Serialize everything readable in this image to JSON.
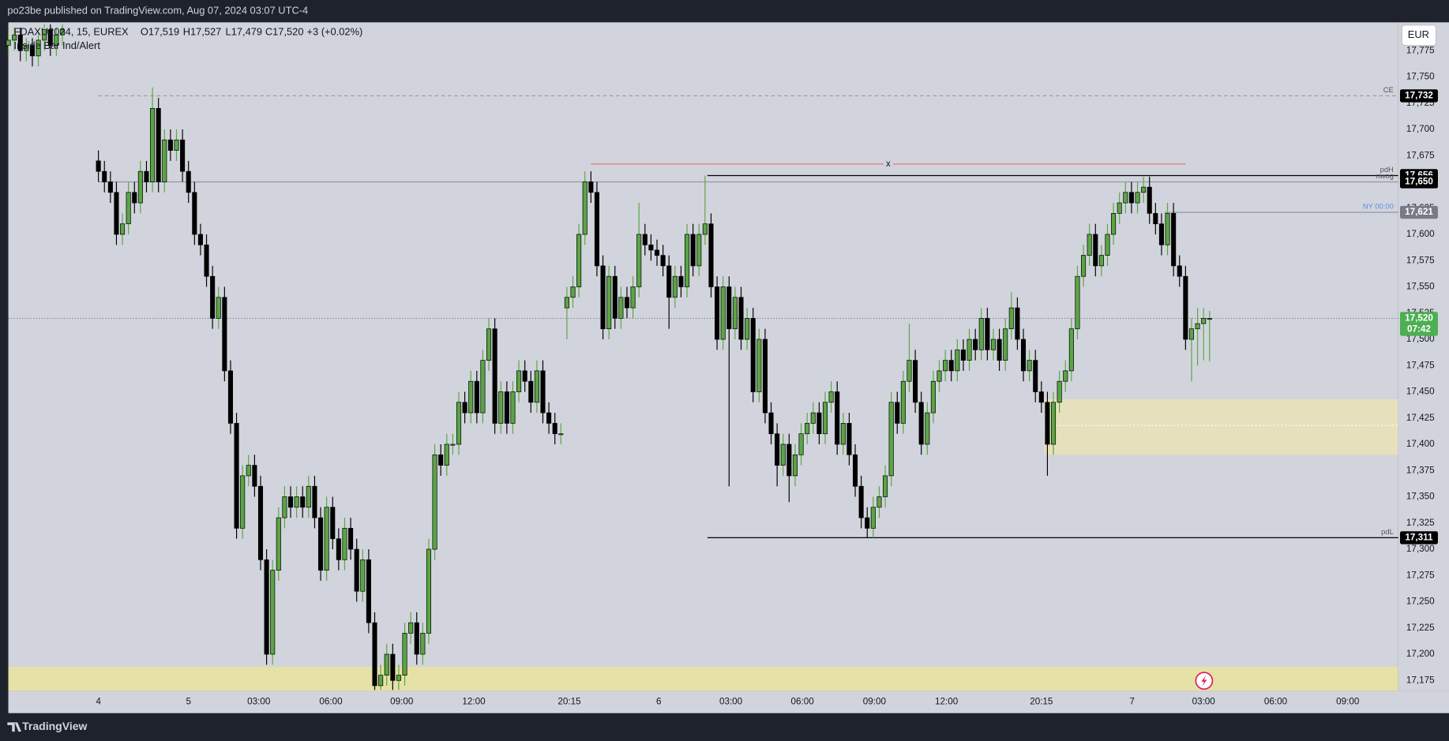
{
  "header": "po23be published on TradingView.com, Aug 07, 2024 03:07 UTC-4",
  "footer": "TradingView",
  "currency": "EUR",
  "chart_data": {
    "type": "candlestick",
    "legend": {
      "symbol": "FDAXU2024, 15, EUREX",
      "ohlc": [
        "O17,519",
        "H17,527",
        "L17,479",
        "C17,520"
      ],
      "change": "+3 (+0.02%)",
      "indicator": "Inside Bar Ind/Alert"
    },
    "up_color": "#5aa544",
    "down_color": "#000000",
    "grid": false,
    "xlim": [
      0,
      231.4
    ],
    "ylim": [
      17165,
      17802
    ],
    "xticks": [
      {
        "value": 15,
        "label": "4"
      },
      {
        "value": 30,
        "label": "5"
      },
      {
        "value": 41.7,
        "label": "03:00"
      },
      {
        "value": 53.7,
        "label": "06:00"
      },
      {
        "value": 65.5,
        "label": "09:00"
      },
      {
        "value": 77.5,
        "label": "12:00"
      },
      {
        "value": 93.4,
        "label": "20:15"
      },
      {
        "value": 108.3,
        "label": "6"
      },
      {
        "value": 120.3,
        "label": "03:00"
      },
      {
        "value": 132.2,
        "label": "06:00"
      },
      {
        "value": 144.2,
        "label": "09:00"
      },
      {
        "value": 156.2,
        "label": "12:00"
      },
      {
        "value": 172,
        "label": "20:15"
      },
      {
        "value": 187.1,
        "label": "7"
      },
      {
        "value": 199,
        "label": "03:00"
      },
      {
        "value": 211,
        "label": "06:00"
      },
      {
        "value": 223,
        "label": "09:00"
      }
    ],
    "yticks": [
      {
        "value": 17175,
        "label": "17,175"
      },
      {
        "value": 17200,
        "label": "17,200"
      },
      {
        "value": 17225,
        "label": "17,225"
      },
      {
        "value": 17250,
        "label": "17,250"
      },
      {
        "value": 17275,
        "label": "17,275"
      },
      {
        "value": 17300,
        "label": "17,300"
      },
      {
        "value": 17325,
        "label": "17,325"
      },
      {
        "value": 17350,
        "label": "17,350"
      },
      {
        "value": 17375,
        "label": "17,375"
      },
      {
        "value": 17400,
        "label": "17,400"
      },
      {
        "value": 17425,
        "label": "17,425"
      },
      {
        "value": 17450,
        "label": "17,450"
      },
      {
        "value": 17475,
        "label": "17,475"
      },
      {
        "value": 17500,
        "label": "17,500"
      },
      {
        "value": 17525,
        "label": "17,525"
      },
      {
        "value": 17550,
        "label": "17,550"
      },
      {
        "value": 17575,
        "label": "17,575"
      },
      {
        "value": 17600,
        "label": "17,600"
      },
      {
        "value": 17625,
        "label": "17,625"
      },
      {
        "value": 17650,
        "label": "17,650"
      },
      {
        "value": 17675,
        "label": "17,675"
      },
      {
        "value": 17700,
        "label": "17,700"
      },
      {
        "value": 17725,
        "label": "17,725"
      },
      {
        "value": 17750,
        "label": "17,750"
      },
      {
        "value": 17775,
        "label": "17,775"
      }
    ],
    "x": [
      0,
      1,
      2,
      3,
      4,
      5,
      6,
      7,
      8,
      9,
      15,
      16,
      17,
      18,
      19,
      20,
      21,
      22,
      23,
      24,
      25,
      26,
      27,
      28,
      29,
      30,
      31,
      32,
      33,
      34,
      35,
      36,
      37,
      38,
      39,
      40,
      41,
      42,
      43,
      44,
      45,
      46,
      47,
      48,
      49,
      50,
      51,
      52,
      53,
      54,
      55,
      56,
      57,
      58,
      59,
      60,
      61,
      62,
      63,
      64,
      65,
      66,
      67,
      68,
      69,
      70,
      71,
      72,
      73,
      74,
      75,
      76,
      77,
      78,
      79,
      80,
      81,
      82,
      83,
      84,
      85,
      86,
      87,
      88,
      89,
      90,
      91,
      92,
      93,
      94,
      95,
      96,
      97,
      98,
      99,
      100,
      101,
      102,
      103,
      104,
      105,
      106,
      107,
      108,
      109,
      110,
      111,
      112,
      113,
      114,
      115,
      116,
      117,
      118,
      119,
      120,
      121,
      122,
      123,
      124,
      125,
      126,
      127,
      128,
      129,
      130,
      131,
      132,
      133,
      134,
      135,
      136,
      137,
      138,
      139,
      140,
      141,
      142,
      143,
      144,
      145,
      146,
      147,
      148,
      149,
      150,
      151,
      152,
      153,
      154,
      155,
      156,
      157,
      158,
      159,
      160,
      161,
      162,
      163,
      164,
      165,
      166,
      167,
      168,
      169,
      170,
      171,
      172,
      173,
      174,
      175,
      176,
      177,
      178,
      179,
      180,
      181,
      182,
      183,
      184,
      185,
      186,
      187,
      188,
      189,
      190,
      191,
      192,
      193,
      194,
      195,
      196,
      197,
      198,
      199,
      200
    ],
    "open": [
      17780,
      17785,
      17790,
      17775,
      17780,
      17770,
      17785,
      17795,
      17780,
      17790,
      17670,
      17660,
      17650,
      17640,
      17600,
      17610,
      17640,
      17630,
      17660,
      17650,
      17720,
      17650,
      17690,
      17680,
      17690,
      17660,
      17640,
      17600,
      17590,
      17560,
      17520,
      17540,
      17470,
      17420,
      17320,
      17370,
      17380,
      17360,
      17290,
      17200,
      17280,
      17330,
      17350,
      17340,
      17350,
      17340,
      17360,
      17330,
      17280,
      17340,
      17310,
      17290,
      17320,
      17300,
      17260,
      17290,
      17230,
      17170,
      17180,
      17200,
      17175,
      17180,
      17220,
      17230,
      17200,
      17220,
      17300,
      17390,
      17380,
      17400,
      17400,
      17440,
      17430,
      17460,
      17430,
      17480,
      17510,
      17420,
      17450,
      17420,
      17450,
      17470,
      17460,
      17440,
      17470,
      17430,
      17420,
      17410,
      17530,
      17540,
      17550,
      17600,
      17650,
      17640,
      17570,
      17510,
      17560,
      17520,
      17540,
      17530,
      17550,
      17600,
      17590,
      17585,
      17580,
      17570,
      17540,
      17560,
      17550,
      17600,
      17570,
      17600,
      17610,
      17550,
      17500,
      17550,
      17510,
      17540,
      17500,
      17520,
      17450,
      17500,
      17430,
      17410,
      17380,
      17400,
      17370,
      17390,
      17410,
      17420,
      17430,
      17410,
      17440,
      17450,
      17400,
      17420,
      17390,
      17360,
      17330,
      17320,
      17340,
      17350,
      17370,
      17440,
      17420,
      17460,
      17480,
      17440,
      17400,
      17430,
      17460,
      17470,
      17480,
      17470,
      17490,
      17480,
      17500,
      17490,
      17520,
      17490,
      17500,
      17480,
      17510,
      17530,
      17500,
      17470,
      17480,
      17450,
      17440,
      17400,
      17440,
      17460,
      17470,
      17510,
      17560,
      17580,
      17600,
      17570,
      17580,
      17600,
      17620,
      17630,
      17640,
      17630,
      17640,
      17645,
      17620,
      17610,
      17590,
      17620,
      17570,
      17560,
      17500,
      17510,
      17515,
      17519
    ],
    "high": [
      17792,
      17797,
      17797,
      17787,
      17787,
      17792,
      17800,
      17800,
      17797,
      17800,
      17680,
      17670,
      17660,
      17650,
      17620,
      17650,
      17650,
      17670,
      17670,
      17740,
      17730,
      17700,
      17700,
      17700,
      17700,
      17670,
      17650,
      17610,
      17600,
      17570,
      17550,
      17550,
      17480,
      17430,
      17380,
      17390,
      17390,
      17370,
      17300,
      17290,
      17340,
      17360,
      17360,
      17360,
      17360,
      17370,
      17370,
      17340,
      17350,
      17350,
      17320,
      17330,
      17330,
      17310,
      17300,
      17300,
      17240,
      17190,
      17210,
      17210,
      17190,
      17230,
      17240,
      17240,
      17230,
      17310,
      17400,
      17400,
      17410,
      17410,
      17450,
      17450,
      17470,
      17470,
      17490,
      17520,
      17520,
      17460,
      17460,
      17460,
      17480,
      17480,
      17470,
      17480,
      17480,
      17440,
      17430,
      17420,
      17550,
      17560,
      17610,
      17660,
      17660,
      17650,
      17580,
      17570,
      17570,
      17550,
      17550,
      17560,
      17630,
      17610,
      17600,
      17595,
      17590,
      17580,
      17570,
      17570,
      17610,
      17610,
      17610,
      17656,
      17620,
      17560,
      17560,
      17560,
      17550,
      17550,
      17530,
      17530,
      17510,
      17510,
      17440,
      17420,
      17410,
      17410,
      17400,
      17420,
      17430,
      17440,
      17440,
      17450,
      17460,
      17460,
      17430,
      17430,
      17400,
      17370,
      17340,
      17350,
      17360,
      17380,
      17450,
      17450,
      17470,
      17515,
      17490,
      17450,
      17440,
      17470,
      17480,
      17490,
      17490,
      17500,
      17500,
      17510,
      17510,
      17530,
      17530,
      17510,
      17510,
      17520,
      17545,
      17540,
      17510,
      17490,
      17490,
      17460,
      17450,
      17450,
      17470,
      17480,
      17520,
      17570,
      17590,
      17610,
      17610,
      17590,
      17610,
      17630,
      17640,
      17650,
      17650,
      17650,
      17655,
      17655,
      17630,
      17620,
      17630,
      17630,
      17580,
      17570,
      17520,
      17530,
      17530,
      17527
    ],
    "low": [
      17770,
      17775,
      17765,
      17765,
      17760,
      17760,
      17775,
      17770,
      17770,
      17780,
      17650,
      17640,
      17630,
      17590,
      17590,
      17600,
      17620,
      17620,
      17640,
      17640,
      17640,
      17640,
      17670,
      17670,
      17650,
      17630,
      17590,
      17580,
      17550,
      17510,
      17510,
      17460,
      17410,
      17310,
      17310,
      17360,
      17350,
      17280,
      17190,
      17190,
      17270,
      17320,
      17330,
      17330,
      17330,
      17330,
      17320,
      17270,
      17270,
      17300,
      17280,
      17280,
      17290,
      17250,
      17250,
      17220,
      17166,
      17166,
      17170,
      17166,
      17166,
      17170,
      17210,
      17190,
      17190,
      17210,
      17290,
      17370,
      17370,
      17390,
      17390,
      17420,
      17420,
      17420,
      17420,
      17470,
      17410,
      17410,
      17410,
      17410,
      17440,
      17450,
      17430,
      17430,
      17420,
      17410,
      17400,
      17400,
      17500,
      17530,
      17540,
      17590,
      17630,
      17560,
      17500,
      17500,
      17510,
      17510,
      17520,
      17520,
      17540,
      17580,
      17575,
      17570,
      17560,
      17510,
      17530,
      17540,
      17540,
      17560,
      17560,
      17590,
      17540,
      17490,
      17490,
      17360,
      17500,
      17490,
      17490,
      17440,
      17440,
      17420,
      17400,
      17360,
      17370,
      17345,
      17360,
      17380,
      17400,
      17410,
      17400,
      17400,
      17430,
      17390,
      17390,
      17380,
      17350,
      17320,
      17311,
      17311,
      17330,
      17340,
      17360,
      17410,
      17410,
      17450,
      17430,
      17390,
      17390,
      17420,
      17450,
      17460,
      17460,
      17460,
      17470,
      17470,
      17480,
      17480,
      17480,
      17480,
      17470,
      17470,
      17500,
      17490,
      17460,
      17460,
      17440,
      17430,
      17370,
      17390,
      17430,
      17450,
      17460,
      17500,
      17550,
      17570,
      17560,
      17560,
      17570,
      17590,
      17610,
      17620,
      17620,
      17620,
      17630,
      17610,
      17600,
      17580,
      17580,
      17560,
      17550,
      17490,
      17460,
      17475,
      17480,
      17479
    ],
    "close": [
      17785,
      17790,
      17775,
      17780,
      17770,
      17785,
      17795,
      17780,
      17790,
      17795,
      17660,
      17650,
      17640,
      17600,
      17610,
      17640,
      17630,
      17660,
      17650,
      17720,
      17650,
      17690,
      17680,
      17690,
      17660,
      17640,
      17600,
      17590,
      17560,
      17520,
      17540,
      17470,
      17420,
      17320,
      17370,
      17380,
      17360,
      17290,
      17200,
      17280,
      17330,
      17350,
      17340,
      17350,
      17340,
      17360,
      17330,
      17280,
      17340,
      17310,
      17290,
      17320,
      17300,
      17260,
      17290,
      17230,
      17170,
      17180,
      17200,
      17175,
      17180,
      17220,
      17230,
      17200,
      17220,
      17300,
      17390,
      17380,
      17400,
      17400,
      17440,
      17430,
      17460,
      17430,
      17480,
      17510,
      17420,
      17450,
      17420,
      17450,
      17470,
      17460,
      17440,
      17470,
      17430,
      17420,
      17410,
      17410,
      17540,
      17550,
      17600,
      17650,
      17640,
      17570,
      17510,
      17560,
      17520,
      17540,
      17530,
      17550,
      17600,
      17590,
      17585,
      17580,
      17570,
      17540,
      17560,
      17550,
      17600,
      17570,
      17600,
      17610,
      17550,
      17500,
      17550,
      17510,
      17540,
      17500,
      17520,
      17450,
      17500,
      17430,
      17410,
      17380,
      17400,
      17370,
      17390,
      17410,
      17420,
      17430,
      17410,
      17440,
      17450,
      17400,
      17420,
      17390,
      17360,
      17330,
      17320,
      17340,
      17350,
      17370,
      17440,
      17420,
      17460,
      17480,
      17440,
      17400,
      17430,
      17460,
      17470,
      17480,
      17470,
      17490,
      17480,
      17500,
      17490,
      17520,
      17490,
      17500,
      17480,
      17510,
      17530,
      17500,
      17470,
      17480,
      17450,
      17440,
      17400,
      17440,
      17460,
      17470,
      17510,
      17560,
      17580,
      17600,
      17570,
      17580,
      17600,
      17620,
      17630,
      17640,
      17630,
      17640,
      17645,
      17620,
      17610,
      17590,
      17620,
      17570,
      17560,
      17500,
      17510,
      17515,
      17520,
      17520
    ],
    "zones": [
      {
        "top": 17188,
        "bottom": 17165,
        "from": 0,
        "color": "#e8e2a0"
      },
      {
        "top": 17443,
        "bottom": 17390,
        "from": 172.5,
        "mid": 17418,
        "color": "#e8e2b8"
      }
    ],
    "levels": [
      {
        "name": "CE",
        "value": 17732,
        "label": "17,732",
        "from": 15,
        "color": "#9598a1",
        "dash": true,
        "tag": "#000000"
      },
      {
        "name": "pdH",
        "value": 17656,
        "label": "17,656",
        "from": 116.4,
        "color": "#000000",
        "dash": false,
        "tag": "#000000"
      },
      {
        "name": "nwog",
        "value": 17650,
        "label": "17,650",
        "from": 15,
        "color": "#9598a1",
        "dash": false,
        "tag": "#000000"
      },
      {
        "name": "NY 00:00",
        "value": 17621,
        "label": "17,621",
        "from": 192.5,
        "color": "#8a8fa0",
        "dash": false,
        "tag": "#787b86",
        "name_color": "#5b8def"
      },
      {
        "name": "pdL",
        "value": 17311,
        "label": "17,311",
        "from": 116.4,
        "color": "#000000",
        "dash": false,
        "tag": "#000000"
      }
    ],
    "marker_line": {
      "name": "x",
      "value": 17667,
      "from": 97,
      "to": 196,
      "color": "#e57373"
    },
    "last_price": {
      "value": 17520,
      "label": "17,520",
      "countdown": "07:42",
      "color": "#4caf50"
    }
  }
}
